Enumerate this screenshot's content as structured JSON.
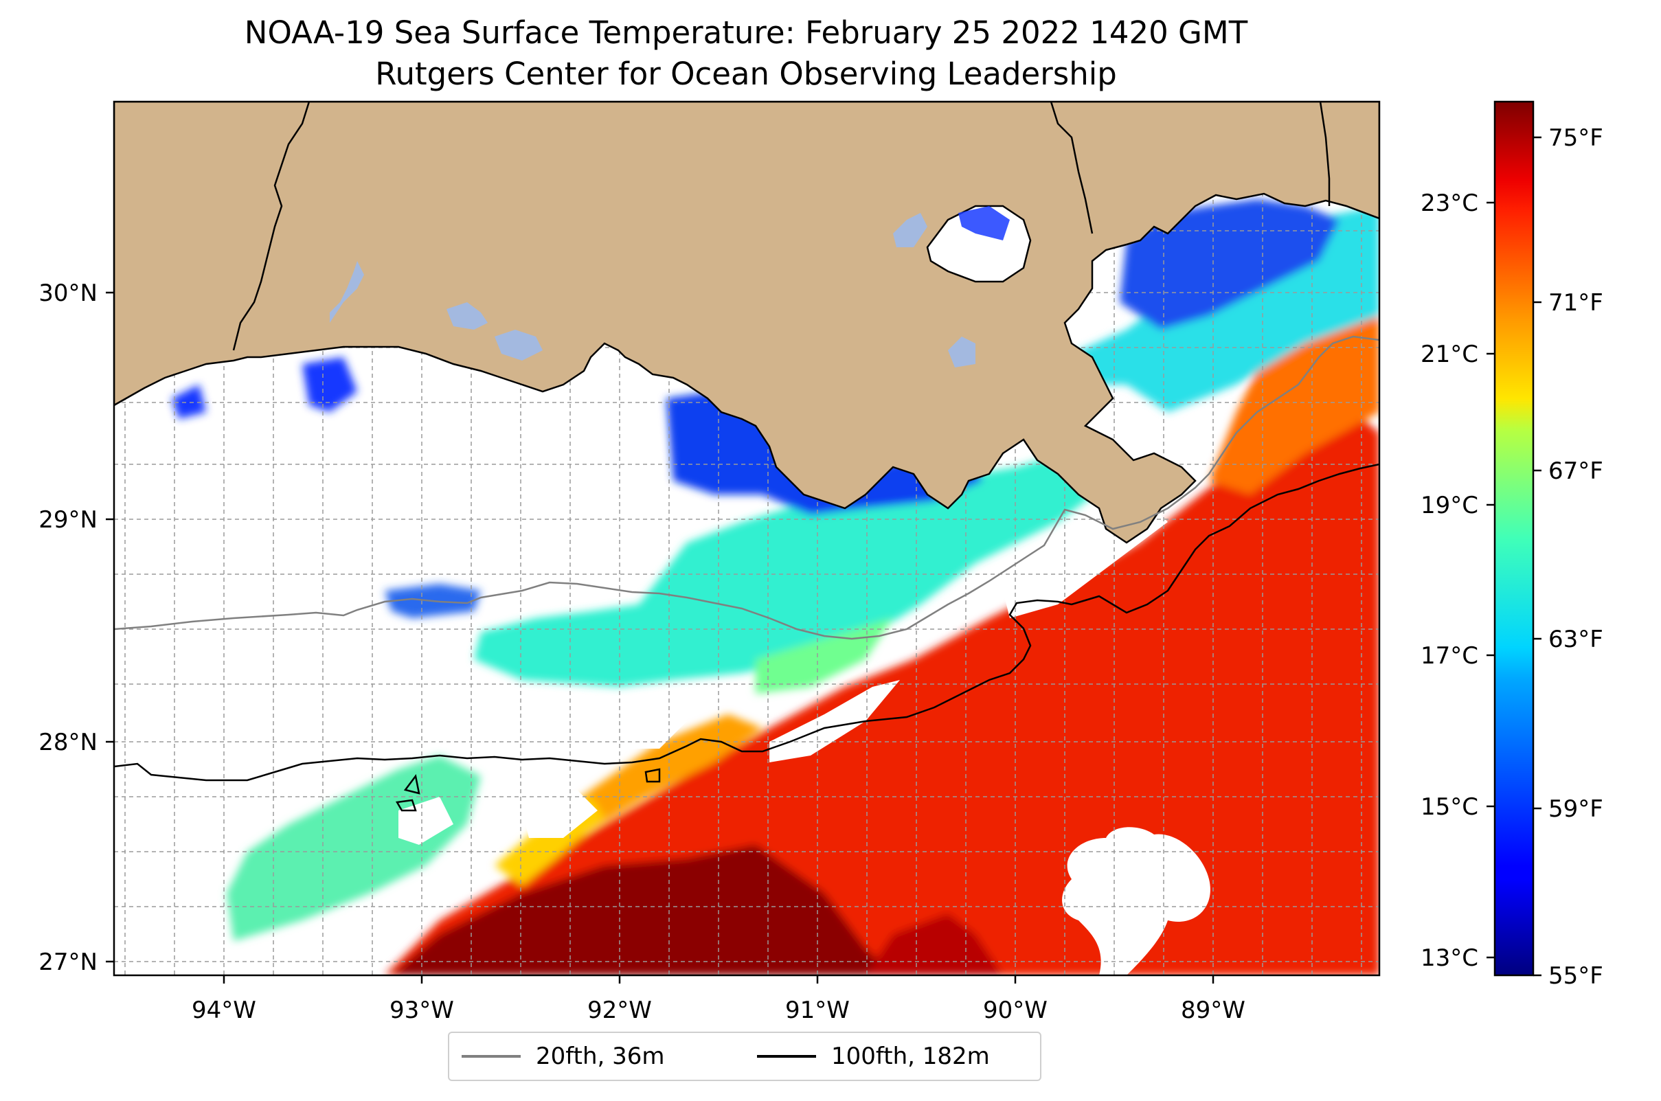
{
  "title": "NOAA-19 Sea Surface Temperature: February 25 2022 1420 GMT",
  "subtitle": "Rutgers Center for Ocean Observing Leadership",
  "map": {
    "lon_range": [
      -94.55,
      -88.15
    ],
    "lat_range": [
      26.93,
      30.85
    ],
    "lon_ticks": [
      {
        "value": -94,
        "label": "94°W"
      },
      {
        "value": -93,
        "label": "93°W"
      },
      {
        "value": -92,
        "label": "92°W"
      },
      {
        "value": -91,
        "label": "91°W"
      },
      {
        "value": -90,
        "label": "90°W"
      },
      {
        "value": -89,
        "label": "89°W"
      }
    ],
    "lat_ticks": [
      {
        "value": 27,
        "label": "27°N"
      },
      {
        "value": 28,
        "label": "28°N"
      },
      {
        "value": 29,
        "label": "29°N"
      },
      {
        "value": 30,
        "label": "30°N"
      }
    ],
    "gridlines": true,
    "land_color": "#d2b48c",
    "lake_color": "#a3b9e0"
  },
  "colorbar": {
    "colormap": "jet",
    "fahrenheit_range": [
      55,
      76
    ],
    "celsius_range": [
      12.8,
      24.4
    ],
    "fahrenheit_ticks": [
      {
        "value": 55,
        "label": "55°F"
      },
      {
        "value": 59,
        "label": "59°F"
      },
      {
        "value": 63,
        "label": "63°F"
      },
      {
        "value": 67,
        "label": "67°F"
      },
      {
        "value": 71,
        "label": "71°F"
      },
      {
        "value": 75,
        "label": "75°F"
      }
    ],
    "celsius_ticks": [
      {
        "value": 13,
        "label": "13°C"
      },
      {
        "value": 15,
        "label": "15°C"
      },
      {
        "value": 17,
        "label": "17°C"
      },
      {
        "value": 19,
        "label": "19°C"
      },
      {
        "value": 21,
        "label": "21°C"
      },
      {
        "value": 23,
        "label": "23°C"
      }
    ]
  },
  "legend": {
    "items": [
      {
        "label": "20fth, 36m",
        "color": "#808080"
      },
      {
        "label": "100fth, 182m",
        "color": "#000000"
      }
    ]
  }
}
